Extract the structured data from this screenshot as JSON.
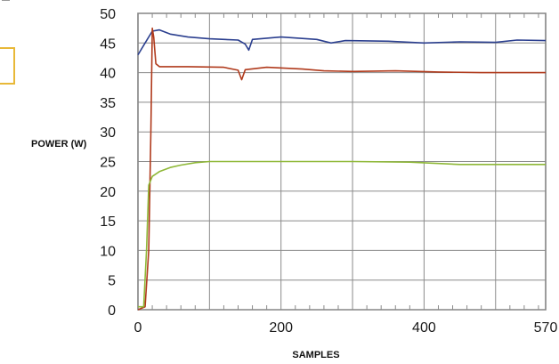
{
  "chart_data": {
    "type": "line",
    "xlabel": "SAMPLES",
    "ylabel": "POWER (W)",
    "xlim": [
      0,
      570
    ],
    "ylim": [
      0,
      50
    ],
    "x_ticks": [
      "0",
      "200",
      "400",
      "570"
    ],
    "y_ticks": [
      "0",
      "5",
      "10",
      "15",
      "20",
      "25",
      "30",
      "35",
      "40",
      "45",
      "50"
    ],
    "grid": true,
    "legend": "none",
    "series": [
      {
        "color": "#2b3f8f",
        "points": [
          [
            0,
            43
          ],
          [
            10,
            45
          ],
          [
            20,
            47
          ],
          [
            30,
            47.2
          ],
          [
            45,
            46.5
          ],
          [
            70,
            46
          ],
          [
            100,
            45.7
          ],
          [
            140,
            45.5
          ],
          [
            150,
            44.8
          ],
          [
            155,
            43.8
          ],
          [
            160,
            45.6
          ],
          [
            200,
            46
          ],
          [
            250,
            45.6
          ],
          [
            270,
            45
          ],
          [
            290,
            45.4
          ],
          [
            350,
            45.3
          ],
          [
            400,
            45
          ],
          [
            450,
            45.2
          ],
          [
            500,
            45.1
          ],
          [
            530,
            45.5
          ],
          [
            570,
            45.4
          ]
        ]
      },
      {
        "color": "#b03a1c",
        "points": [
          [
            0,
            0
          ],
          [
            10,
            0.5
          ],
          [
            15,
            10
          ],
          [
            18,
            30
          ],
          [
            20,
            47.5
          ],
          [
            22,
            46
          ],
          [
            25,
            41.5
          ],
          [
            30,
            41
          ],
          [
            70,
            41
          ],
          [
            120,
            40.9
          ],
          [
            140,
            40.4
          ],
          [
            145,
            38.8
          ],
          [
            150,
            40.5
          ],
          [
            180,
            40.9
          ],
          [
            230,
            40.6
          ],
          [
            260,
            40.3
          ],
          [
            300,
            40.2
          ],
          [
            360,
            40.3
          ],
          [
            420,
            40.1
          ],
          [
            480,
            40
          ],
          [
            530,
            40
          ],
          [
            570,
            40
          ]
        ]
      },
      {
        "color": "#8fb838",
        "points": [
          [
            0,
            0.5
          ],
          [
            8,
            0.5
          ],
          [
            12,
            10
          ],
          [
            15,
            21
          ],
          [
            20,
            22.5
          ],
          [
            30,
            23.3
          ],
          [
            45,
            24
          ],
          [
            60,
            24.4
          ],
          [
            80,
            24.8
          ],
          [
            100,
            25
          ],
          [
            200,
            25
          ],
          [
            300,
            25
          ],
          [
            380,
            24.9
          ],
          [
            450,
            24.5
          ],
          [
            500,
            24.5
          ],
          [
            570,
            24.5
          ]
        ]
      }
    ]
  }
}
